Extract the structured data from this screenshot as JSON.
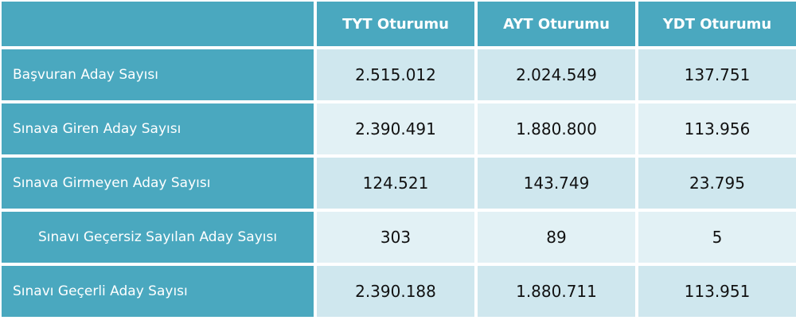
{
  "table": {
    "header": [
      "TYT Oturumu",
      "AYT Oturumu",
      "YDT Oturumu"
    ],
    "rows": [
      [
        "Başvuran Aday Sayısı",
        "2.515.012",
        "2.024.549",
        "137.751"
      ],
      [
        "Sınava Giren Aday Sayısı",
        "2.390.491",
        "1.880.800",
        "113.956"
      ],
      [
        "Sınava Girmeyen Aday Sayısı",
        "124.521",
        "143.749",
        "23.795"
      ],
      [
        "Sınavı Geçersiz Sayılan Aday Sayısı",
        "303",
        "89",
        "5"
      ],
      [
        "Sınavı Geçerli Aday Sayısı",
        "2.390.188",
        "1.880.711",
        "113.951"
      ]
    ]
  }
}
